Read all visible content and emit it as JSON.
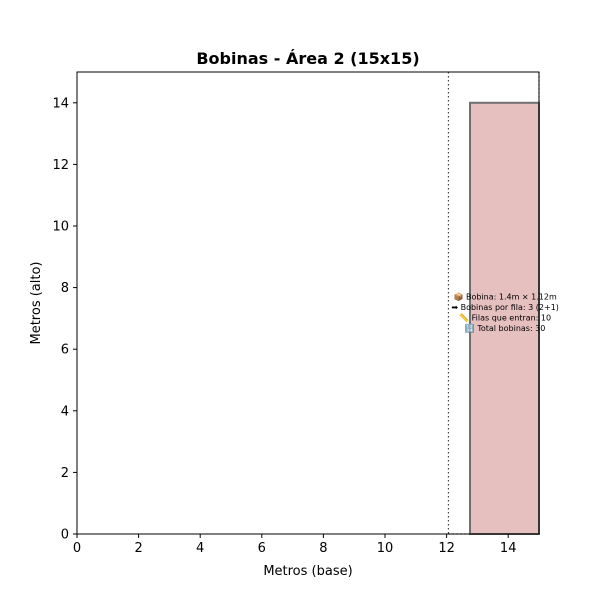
{
  "chart_data": {
    "type": "bar",
    "title": "Bobinas - Área 2 (15x15)",
    "xlabel": "Metros (base)",
    "ylabel": "Metros (alto)",
    "xlim": [
      0,
      15
    ],
    "ylim": [
      0,
      15
    ],
    "xticks": [
      0,
      2,
      4,
      6,
      8,
      10,
      12,
      14
    ],
    "yticks": [
      0,
      2,
      4,
      6,
      8,
      10,
      12,
      14
    ],
    "grid": false,
    "rect": {
      "x0": 12.76,
      "x1": 15,
      "y0": 0,
      "y1": 14,
      "fill": "#e6bfbf",
      "edge": "#707070"
    },
    "dotted_lines_x": [
      12.06,
      15
    ],
    "annotation_lines": [
      "📦 Bobina: 1.4m × 1.12m",
      "➡ Bobinas por fila: 3 (2+1)",
      "📏 Filas que entran: 10",
      "🔢 Total bobinas: 30"
    ],
    "annotation_anchor": {
      "x": 13.9,
      "y": 7.2
    }
  }
}
